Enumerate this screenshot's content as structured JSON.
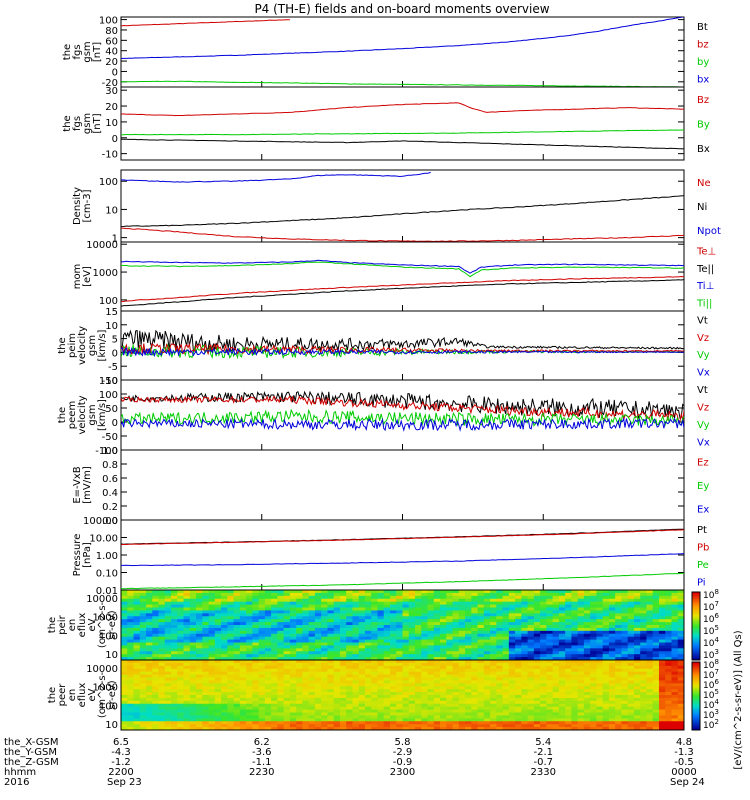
{
  "title": "P4 (TH-E) fields and on-board moments overview",
  "colors": {
    "black": "#000000",
    "red": "#d00000",
    "green": "#00cc00",
    "blue": "#0000dd",
    "axis": "#000000"
  },
  "chart_data": [
    {
      "type": "line",
      "id": "p1",
      "ylabel": [
        "the",
        "fgs",
        "gsm",
        "[nT]"
      ],
      "yticks": [
        "100",
        "80",
        "60",
        "40",
        "20",
        "0",
        "-20"
      ],
      "ylim": [
        -30,
        105
      ],
      "legend": [
        {
          "text": "Bt",
          "color": "black"
        },
        {
          "text": "bz",
          "color": "red"
        },
        {
          "text": "by",
          "color": "green"
        },
        {
          "text": "bx",
          "color": "blue"
        }
      ],
      "series": [
        {
          "color": "red",
          "x": [
            0,
            0.05,
            0.1,
            0.15,
            0.2,
            0.25,
            0.3
          ],
          "y": [
            88,
            90,
            92,
            94,
            96,
            98,
            100
          ]
        },
        {
          "color": "blue",
          "x": [
            0,
            0.1,
            0.2,
            0.3,
            0.4,
            0.5,
            0.6,
            0.7,
            0.8,
            0.85,
            0.9,
            1.0
          ],
          "y": [
            25,
            28,
            31,
            35,
            39,
            44,
            50,
            58,
            70,
            78,
            88,
            105
          ]
        },
        {
          "color": "green",
          "x": [
            0,
            0.1,
            0.2,
            0.3,
            0.4,
            0.5,
            0.6,
            0.7,
            0.8,
            0.9,
            1.0
          ],
          "y": [
            -20,
            -19,
            -21,
            -22,
            -24,
            -25,
            -26,
            -27,
            -28,
            -29,
            -30
          ]
        }
      ]
    },
    {
      "type": "line",
      "id": "p2",
      "ylabel": [
        "the",
        "fgs",
        "gsm",
        "[nT]"
      ],
      "yticks": [
        "30",
        "20",
        "10",
        "0",
        "-10"
      ],
      "ylim": [
        -14,
        32
      ],
      "legend": [
        {
          "text": "Bz",
          "color": "red"
        },
        {
          "text": "By",
          "color": "green"
        },
        {
          "text": "Bx",
          "color": "black"
        }
      ],
      "series": [
        {
          "color": "red",
          "x": [
            0,
            0.1,
            0.2,
            0.3,
            0.4,
            0.5,
            0.6,
            0.62,
            0.65,
            0.7,
            0.8,
            0.9,
            1.0
          ],
          "y": [
            15,
            14,
            15,
            16,
            19,
            21,
            22,
            19,
            16,
            17,
            18,
            19,
            18
          ]
        },
        {
          "color": "green",
          "x": [
            0,
            0.2,
            0.4,
            0.6,
            0.8,
            1.0
          ],
          "y": [
            2,
            2,
            2.5,
            3,
            4,
            5
          ]
        },
        {
          "color": "black",
          "x": [
            0,
            0.2,
            0.4,
            0.5,
            0.6,
            0.7,
            0.8,
            0.9,
            1.0
          ],
          "y": [
            -1,
            -2,
            -3,
            -2,
            -3,
            -4,
            -5,
            -6,
            -7
          ]
        }
      ]
    },
    {
      "type": "line",
      "id": "p3",
      "ylog": true,
      "ylabel": [
        "Density",
        "[cm-3]"
      ],
      "yticks": [
        "100",
        "10",
        "1"
      ],
      "ylim": [
        0.7,
        250
      ],
      "legend": [
        {
          "text": "Ne",
          "color": "red"
        },
        {
          "text": "Ni",
          "color": "black"
        },
        {
          "text": "Npot",
          "color": "blue"
        }
      ],
      "series": [
        {
          "color": "blue",
          "x": [
            0,
            0.1,
            0.2,
            0.3,
            0.35,
            0.4,
            0.5,
            0.55
          ],
          "y": [
            110,
            95,
            100,
            120,
            160,
            170,
            150,
            200
          ]
        },
        {
          "color": "black",
          "x": [
            0,
            0.1,
            0.2,
            0.3,
            0.4,
            0.5,
            0.6,
            0.7,
            0.8,
            0.9,
            1.0
          ],
          "y": [
            2.5,
            2.7,
            3.2,
            4,
            5,
            7,
            9.5,
            12,
            16,
            22,
            30
          ]
        },
        {
          "color": "red",
          "x": [
            0,
            0.1,
            0.2,
            0.3,
            0.4,
            0.5,
            0.6,
            0.7,
            0.8,
            0.9,
            1.0
          ],
          "y": [
            2.2,
            1.6,
            1.1,
            0.9,
            0.8,
            0.75,
            0.75,
            0.8,
            0.9,
            1.0,
            1.2
          ]
        }
      ]
    },
    {
      "type": "line",
      "id": "p4",
      "ylog": true,
      "ylabel": [
        "mom",
        "[eV]"
      ],
      "yticks": [
        "10000",
        "1000",
        "100"
      ],
      "ylim": [
        40,
        12000
      ],
      "legend": [
        {
          "text": "Te⊥",
          "color": "red"
        },
        {
          "text": "Te||",
          "color": "black"
        },
        {
          "text": "Ti⊥",
          "color": "blue"
        },
        {
          "text": "Ti||",
          "color": "green"
        }
      ],
      "series": [
        {
          "color": "blue",
          "x": [
            0,
            0.1,
            0.2,
            0.3,
            0.35,
            0.4,
            0.5,
            0.6,
            0.62,
            0.64,
            0.7,
            0.8,
            0.9,
            1.0
          ],
          "y": [
            2400,
            2200,
            2100,
            2300,
            2600,
            2200,
            1800,
            1600,
            900,
            1500,
            1800,
            1900,
            1800,
            1700
          ]
        },
        {
          "color": "green",
          "x": [
            0,
            0.1,
            0.2,
            0.3,
            0.35,
            0.4,
            0.5,
            0.6,
            0.62,
            0.64,
            0.7,
            0.8,
            0.9,
            1.0
          ],
          "y": [
            1700,
            1600,
            1700,
            2000,
            2300,
            2000,
            1500,
            1300,
            700,
            1200,
            1400,
            1500,
            1450,
            1400
          ]
        },
        {
          "color": "red",
          "x": [
            0,
            0.1,
            0.2,
            0.3,
            0.4,
            0.5,
            0.6,
            0.7,
            0.8,
            0.9,
            1.0
          ],
          "y": [
            90,
            120,
            170,
            220,
            280,
            340,
            420,
            500,
            570,
            620,
            680
          ]
        },
        {
          "color": "black",
          "x": [
            0,
            0.1,
            0.2,
            0.3,
            0.4,
            0.5,
            0.6,
            0.7,
            0.8,
            0.9,
            1.0
          ],
          "y": [
            60,
            85,
            120,
            160,
            210,
            260,
            320,
            380,
            420,
            470,
            520
          ]
        }
      ]
    },
    {
      "type": "line",
      "id": "p5",
      "ylabel": [
        "the",
        "peim",
        "velocity",
        "gsm",
        "[km/s]"
      ],
      "yticks": [
        "15",
        "10",
        "5",
        "0",
        "-5",
        "-10"
      ],
      "ylim": [
        -10,
        15
      ],
      "legend": [
        {
          "text": "Vt",
          "color": "black"
        },
        {
          "text": "Vz",
          "color": "red"
        },
        {
          "text": "Vy",
          "color": "green"
        },
        {
          "text": "Vx",
          "color": "blue"
        }
      ],
      "noisy": true,
      "series": [
        {
          "color": "black",
          "base": [
            [
              0,
              5
            ],
            [
              0.2,
              3
            ],
            [
              0.5,
              3
            ],
            [
              0.6,
              4
            ],
            [
              0.65,
              2
            ],
            [
              1.0,
              1.5
            ]
          ],
          "amp": [
            [
              0,
              4
            ],
            [
              0.3,
              2.5
            ],
            [
              0.6,
              1.5
            ],
            [
              0.65,
              0.4
            ],
            [
              1,
              0.3
            ]
          ]
        },
        {
          "color": "green",
          "base": [
            [
              0,
              0.5
            ],
            [
              0.3,
              0
            ],
            [
              0.65,
              0.3
            ],
            [
              1.0,
              0.2
            ]
          ],
          "amp": [
            [
              0,
              2.5
            ],
            [
              0.3,
              2
            ],
            [
              0.65,
              0.6
            ],
            [
              1,
              0.2
            ]
          ]
        },
        {
          "color": "red",
          "base": [
            [
              0,
              1.5
            ],
            [
              0.3,
              1
            ],
            [
              0.65,
              0.6
            ],
            [
              1.0,
              0.5
            ]
          ],
          "amp": [
            [
              0,
              2
            ],
            [
              0.3,
              1.5
            ],
            [
              0.65,
              0.4
            ],
            [
              1,
              0.2
            ]
          ]
        },
        {
          "color": "blue",
          "base": [
            [
              0,
              0.2
            ],
            [
              1.0,
              0.1
            ]
          ],
          "amp": [
            [
              0,
              1.5
            ],
            [
              0.65,
              0.4
            ],
            [
              1,
              0.1
            ]
          ]
        }
      ]
    },
    {
      "type": "line",
      "id": "p6",
      "ylabel": [
        "the",
        "peem",
        "velocity",
        "gsm",
        "[km/s]"
      ],
      "yticks": [
        "150",
        "100",
        "50",
        "0",
        "-50",
        "-100"
      ],
      "ylim": [
        -100,
        150
      ],
      "legend": [
        {
          "text": "Vt",
          "color": "black"
        },
        {
          "text": "Vz",
          "color": "red"
        },
        {
          "text": "Vy",
          "color": "green"
        },
        {
          "text": "Vx",
          "color": "blue"
        }
      ],
      "noisy": true,
      "series": [
        {
          "color": "black",
          "base": [
            [
              0,
              85
            ],
            [
              0.3,
              90
            ],
            [
              0.5,
              75
            ],
            [
              0.7,
              55
            ],
            [
              1.0,
              40
            ]
          ],
          "amp": [
            [
              0,
              10
            ],
            [
              0.4,
              25
            ],
            [
              0.8,
              35
            ],
            [
              1,
              30
            ]
          ]
        },
        {
          "color": "red",
          "base": [
            [
              0,
              80
            ],
            [
              0.3,
              80
            ],
            [
              0.5,
              60
            ],
            [
              0.7,
              40
            ],
            [
              1.0,
              20
            ]
          ],
          "amp": [
            [
              0,
              8
            ],
            [
              0.5,
              15
            ],
            [
              1,
              20
            ]
          ]
        },
        {
          "color": "green",
          "base": [
            [
              0,
              10
            ],
            [
              0.3,
              20
            ],
            [
              0.6,
              10
            ],
            [
              1.0,
              5
            ]
          ],
          "amp": [
            [
              0,
              20
            ],
            [
              0.5,
              25
            ],
            [
              1,
              20
            ]
          ]
        },
        {
          "color": "blue",
          "base": [
            [
              0,
              -5
            ],
            [
              0.5,
              -10
            ],
            [
              1.0,
              -5
            ]
          ],
          "amp": [
            [
              0,
              15
            ],
            [
              0.5,
              20
            ],
            [
              1,
              18
            ]
          ]
        }
      ]
    },
    {
      "type": "line",
      "id": "p7",
      "ylabel": [
        "E=-VxB",
        "[mV/m]"
      ],
      "yticks": [
        "1.0",
        "0.8",
        "0.6",
        "0.4",
        "0.2",
        "0.0"
      ],
      "ylim": [
        0,
        1
      ],
      "legend": [
        {
          "text": "Ez",
          "color": "red"
        },
        {
          "text": "Ey",
          "color": "green"
        },
        {
          "text": "Ex",
          "color": "blue"
        }
      ],
      "series": []
    },
    {
      "type": "line",
      "id": "p8",
      "ylog": true,
      "ylabel": [
        "Pressure",
        "[nPa]"
      ],
      "yticks": [
        "100.00",
        "10.00",
        "1.00",
        "0.10",
        "0.01"
      ],
      "ylim": [
        0.01,
        100
      ],
      "legend": [
        {
          "text": "Pt",
          "color": "black"
        },
        {
          "text": "Pb",
          "color": "red"
        },
        {
          "text": "Pe",
          "color": "green"
        },
        {
          "text": "Pi",
          "color": "blue"
        }
      ],
      "series": [
        {
          "color": "black",
          "x": [
            0,
            0.2,
            0.4,
            0.6,
            0.8,
            1.0
          ],
          "y": [
            4.2,
            5.5,
            7.5,
            11,
            17,
            30
          ]
        },
        {
          "color": "red",
          "x": [
            0,
            0.2,
            0.4,
            0.6,
            0.8,
            1.0
          ],
          "y": [
            4,
            5.3,
            7.2,
            10.5,
            16,
            28
          ]
        },
        {
          "color": "blue",
          "x": [
            0,
            0.2,
            0.4,
            0.6,
            0.8,
            1.0
          ],
          "y": [
            0.25,
            0.28,
            0.35,
            0.45,
            0.7,
            1.2
          ]
        },
        {
          "color": "green",
          "x": [
            0,
            0.2,
            0.4,
            0.6,
            0.8,
            1.0
          ],
          "y": [
            0.012,
            0.015,
            0.02,
            0.03,
            0.05,
            0.09
          ]
        }
      ]
    },
    {
      "type": "heatmap",
      "id": "p9",
      "ylabel": [
        "the",
        "peir",
        "en",
        "eflux",
        "eV",
        "(cm^2-s-",
        "sr-eV)"
      ],
      "yticks": [
        "10000",
        "1000",
        "100",
        "10"
      ],
      "variant": "ion"
    },
    {
      "type": "heatmap",
      "id": "p10",
      "ylabel": [
        "the",
        "peer",
        "en",
        "eflux",
        "eV",
        "(cm^2-s-",
        "sr-eV)"
      ],
      "yticks": [
        "10000",
        "1000",
        "100",
        "10"
      ],
      "variant": "electron"
    }
  ],
  "colorbar": {
    "top": {
      "ticks": [
        "10^8",
        "10^7",
        "10^6",
        "10^5",
        "10^4",
        "10^3"
      ]
    },
    "bottom": {
      "ticks": [
        "10^8",
        "10^7",
        "10^6",
        "10^5",
        "10^4",
        "10^3",
        "10^2"
      ]
    },
    "label": "[eV/(cm^2-s-sr-eV)] (All Qs)"
  },
  "xaxis": {
    "row_labels": [
      "the_X-GSM",
      "the_Y-GSM",
      "the_Z-GSM",
      "hhmm",
      "2016"
    ],
    "columns": [
      {
        "values": [
          "6.5",
          "-4.3",
          "-1.2",
          "2200",
          "Sep 23"
        ]
      },
      {
        "values": [
          "6.2",
          "-3.6",
          "-1.1",
          "2230",
          ""
        ]
      },
      {
        "values": [
          "5.8",
          "-2.9",
          "-0.9",
          "2300",
          ""
        ]
      },
      {
        "values": [
          "5.4",
          "-2.1",
          "-0.7",
          "2330",
          ""
        ]
      },
      {
        "values": [
          "4.8",
          "-1.3",
          "-0.5",
          "0000",
          "Sep 24"
        ]
      }
    ]
  }
}
